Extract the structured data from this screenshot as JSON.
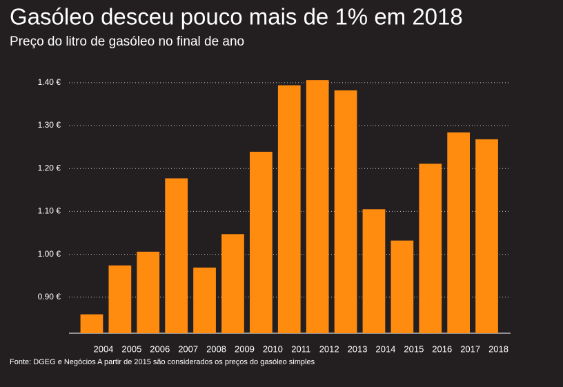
{
  "chart_data": {
    "type": "bar",
    "title": "Gasóleo desceu pouco mais de 1% em 2018",
    "subtitle": "Preço do litro de gasóleo no final de ano",
    "footer": "Fonte: DGEG e Negócios A partir de 2015 são considerados os preços do gasóleo simples",
    "categories": [
      "2004",
      "2005",
      "2006",
      "2007",
      "2008",
      "2009",
      "2010",
      "2011",
      "2012",
      "2013",
      "2014",
      "2015",
      "2016",
      "2017",
      "2018"
    ],
    "values": [
      0.86,
      0.974,
      1.006,
      1.177,
      0.969,
      1.047,
      1.239,
      1.394,
      1.406,
      1.382,
      1.105,
      1.032,
      1.211,
      1.284,
      1.268
    ],
    "color": "#ff8c0f",
    "ylim": [
      0.816,
      1.44
    ],
    "yticks": [
      {
        "value": 0.9,
        "label": "0.90 €"
      },
      {
        "value": 1.0,
        "label": "1.00 €"
      },
      {
        "value": 1.1,
        "label": "1.10 €"
      },
      {
        "value": 1.2,
        "label": "1.20 €"
      },
      {
        "value": 1.3,
        "label": "1.30 €"
      },
      {
        "value": 1.4,
        "label": "1.40 €"
      }
    ],
    "grid": true
  }
}
